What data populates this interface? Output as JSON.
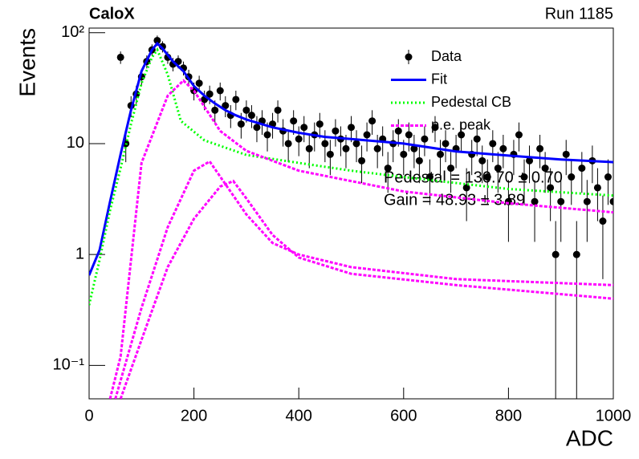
{
  "chart_data": {
    "type": "scatter",
    "title": "CaloX",
    "subtitle": "Run 1185",
    "x_label": "ADC",
    "y_label": "Events",
    "annotations": [
      "Pedestal = 130.70 ± 0.70",
      "Gain = 48.93 ± 3.89"
    ],
    "log_y": true,
    "xlim": [
      0,
      1000
    ],
    "xticks": [
      0,
      200,
      400,
      600,
      800,
      1000
    ],
    "ylim": [
      0.05,
      110
    ],
    "yticks": [
      {
        "value": 0.1,
        "label": "10⁻¹"
      },
      1,
      10,
      {
        "value": 100,
        "label": "10²"
      }
    ],
    "legend": "upper-right",
    "series": [
      {
        "name": "Data",
        "type": "scatter",
        "color": "#000000",
        "x": [
          60,
          70,
          80,
          90,
          100,
          110,
          120,
          130,
          140,
          150,
          160,
          170,
          180,
          190,
          200,
          210,
          220,
          230,
          240,
          250,
          260,
          270,
          280,
          290,
          300,
          310,
          320,
          330,
          340,
          350,
          360,
          370,
          380,
          390,
          400,
          410,
          420,
          430,
          440,
          450,
          460,
          470,
          480,
          490,
          500,
          510,
          520,
          530,
          540,
          550,
          560,
          570,
          580,
          590,
          600,
          610,
          620,
          630,
          640,
          650,
          660,
          670,
          680,
          690,
          700,
          710,
          720,
          730,
          740,
          750,
          760,
          770,
          780,
          790,
          800,
          810,
          820,
          830,
          840,
          850,
          860,
          870,
          880,
          890,
          900,
          910,
          920,
          930,
          940,
          950,
          960,
          970,
          980,
          990,
          1000
        ],
        "values": [
          60,
          10,
          22,
          28,
          40,
          55,
          70,
          85,
          75,
          60,
          52,
          55,
          48,
          40,
          30,
          35,
          25,
          28,
          20,
          30,
          22,
          18,
          25,
          15,
          20,
          18,
          14,
          16,
          12,
          15,
          20,
          13,
          10,
          16,
          11,
          14,
          9,
          12,
          15,
          10,
          8,
          13,
          11,
          9,
          14,
          10,
          7,
          12,
          16,
          9,
          11,
          6,
          10,
          13,
          8,
          12,
          9,
          7,
          11,
          5,
          14,
          8,
          10,
          6,
          9,
          12,
          4,
          8,
          11,
          7,
          5,
          10,
          6,
          9,
          3,
          8,
          12,
          5,
          7,
          3,
          9,
          6,
          4,
          1,
          3,
          8,
          5,
          1,
          6,
          3,
          7,
          4,
          2,
          5,
          3
        ],
        "errors": [
          7.7,
          3.2,
          4.7,
          5.3,
          6.3,
          7.4,
          8.4,
          9.2,
          8.7,
          7.7,
          7.2,
          7.4,
          6.9,
          6.3,
          5.5,
          5.9,
          5,
          5.3,
          4.5,
          5.5,
          4.7,
          4.2,
          5,
          3.9,
          4.5,
          4.2,
          3.7,
          4,
          3.5,
          3.9,
          4.5,
          3.6,
          3.2,
          4,
          3.3,
          3.7,
          3,
          3.5,
          3.9,
          3.2,
          2.8,
          3.6,
          3.3,
          3,
          3.7,
          3.2,
          2.6,
          3.5,
          4,
          3,
          3.3,
          2.4,
          3.2,
          3.6,
          2.8,
          3.5,
          3,
          2.6,
          3.3,
          2.2,
          3.7,
          2.8,
          3.2,
          2.4,
          3,
          3.5,
          2,
          2.8,
          3.3,
          2.6,
          2.2,
          3.2,
          2.4,
          3,
          1.7,
          2.8,
          3.5,
          2.2,
          2.6,
          1.7,
          3,
          2.4,
          2,
          1,
          1.7,
          2.8,
          2.2,
          1,
          2.4,
          1.7,
          2.6,
          2,
          1.4,
          2.2,
          1.7
        ]
      },
      {
        "name": "Fit",
        "type": "line",
        "color": "#0000ff",
        "dash": "none",
        "x": [
          0,
          20,
          40,
          60,
          80,
          100,
          120,
          130,
          140,
          160,
          180,
          200,
          220,
          240,
          260,
          280,
          300,
          350,
          400,
          450,
          500,
          600,
          700,
          800,
          900,
          1000
        ],
        "values": [
          0.65,
          1.1,
          3,
          8,
          20,
          45,
          70,
          80,
          72,
          55,
          45,
          33,
          27,
          23,
          20,
          18,
          16.5,
          14,
          12.5,
          11.5,
          11,
          10,
          8.5,
          7.8,
          7.2,
          6.8
        ]
      },
      {
        "name": "Pedestal CB",
        "type": "line",
        "color": "#00ff00",
        "dash": "2 3",
        "x": [
          0,
          20,
          40,
          60,
          80,
          100,
          120,
          130,
          150,
          175,
          220,
          300,
          400,
          500,
          600,
          800,
          1000
        ],
        "values": [
          0.35,
          0.9,
          2.5,
          6,
          15,
          35,
          60,
          70,
          42,
          16,
          10.7,
          7.9,
          6.7,
          5.7,
          5,
          3.9,
          3.4
        ]
      },
      {
        "name": "p.e. peak",
        "type": "line",
        "color": "#ff00ff",
        "dash": "4 2",
        "x": [
          40,
          60,
          100,
          150,
          180,
          200,
          250,
          300,
          400,
          600,
          800,
          1000
        ],
        "values": [
          0.05,
          0.12,
          6.7,
          27,
          37,
          30,
          13,
          8.6,
          5.7,
          3.7,
          2.9,
          2.4
        ]
      },
      {
        "type": "line",
        "color": "#ff00ff",
        "dash": "4 2",
        "x": [
          50,
          100,
          150,
          200,
          230,
          300,
          350,
          400,
          500,
          700,
          1000
        ],
        "values": [
          0.05,
          0.33,
          1.76,
          5.7,
          6.9,
          2.3,
          1.27,
          1,
          0.77,
          0.6,
          0.53
        ]
      },
      {
        "type": "line",
        "color": "#ff00ff",
        "dash": "4 2",
        "x": [
          60,
          100,
          150,
          200,
          250,
          275,
          300,
          350,
          400,
          500,
          700,
          1000
        ],
        "values": [
          0.05,
          0.17,
          0.77,
          2.1,
          4.1,
          4.6,
          3.2,
          1.5,
          0.94,
          0.67,
          0.53,
          0.4
        ]
      }
    ]
  }
}
